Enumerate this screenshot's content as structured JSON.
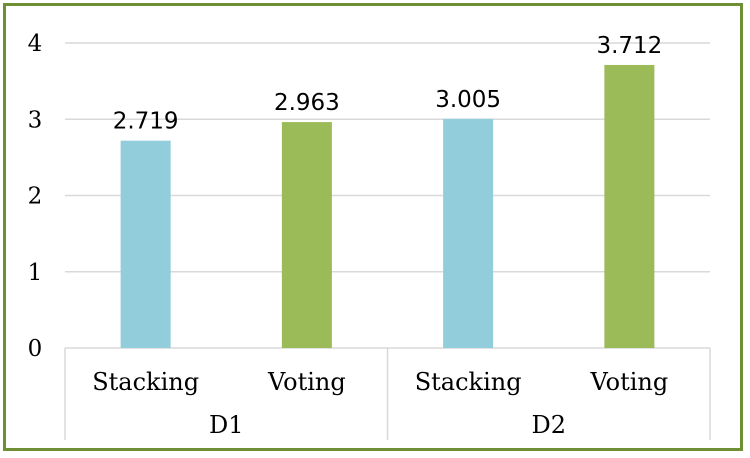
{
  "chart_data": {
    "type": "bar",
    "groups": [
      {
        "name": "D1",
        "bars": [
          {
            "label": "Stacking",
            "value": 2.719,
            "value_text": "2.719",
            "color": "#92cddc"
          },
          {
            "label": "Voting",
            "value": 2.963,
            "value_text": "2.963",
            "color": "#9bbb59"
          }
        ]
      },
      {
        "name": "D2",
        "bars": [
          {
            "label": "Stacking",
            "value": 3.005,
            "value_text": "3.005",
            "color": "#92cddc"
          },
          {
            "label": "Voting",
            "value": 3.712,
            "value_text": "3.712",
            "color": "#9bbb59"
          }
        ]
      }
    ],
    "title": "",
    "xlabel": "",
    "ylabel": "",
    "ylim": [
      0,
      4
    ],
    "yticks": [
      "0",
      "1",
      "2",
      "3",
      "4"
    ],
    "grid": true,
    "legend": "none",
    "colors": {
      "frame": "#6f8f35",
      "grid": "#d9d9d9",
      "stacking": "#92cddc",
      "voting": "#9bbb59"
    }
  }
}
